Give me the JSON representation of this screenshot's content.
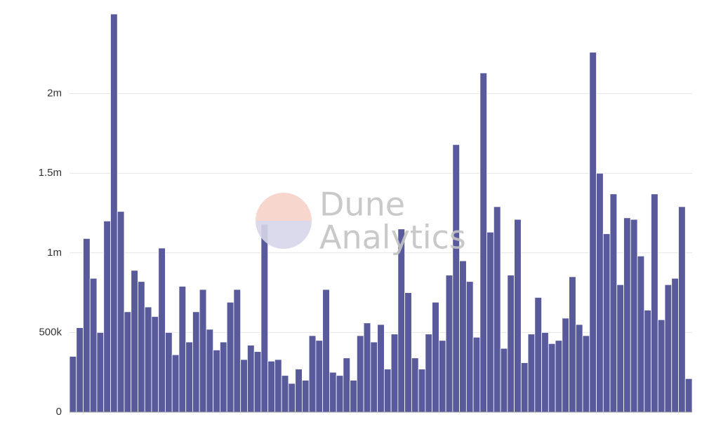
{
  "chart_data": {
    "type": "bar",
    "watermark": [
      "Dune",
      "Analytics"
    ],
    "values": [
      350000,
      530000,
      1090000,
      840000,
      500000,
      1200000,
      2500000,
      1260000,
      630000,
      890000,
      820000,
      660000,
      600000,
      1030000,
      500000,
      360000,
      790000,
      440000,
      630000,
      770000,
      520000,
      390000,
      440000,
      690000,
      770000,
      330000,
      420000,
      380000,
      1180000,
      320000,
      330000,
      230000,
      180000,
      270000,
      200000,
      480000,
      450000,
      770000,
      250000,
      230000,
      340000,
      200000,
      480000,
      560000,
      440000,
      550000,
      270000,
      490000,
      1150000,
      750000,
      340000,
      270000,
      490000,
      690000,
      450000,
      860000,
      1680000,
      950000,
      820000,
      470000,
      2130000,
      1130000,
      1290000,
      400000,
      860000,
      1210000,
      310000,
      490000,
      720000,
      500000,
      430000,
      450000,
      590000,
      850000,
      550000,
      480000,
      2260000,
      1500000,
      1120000,
      1370000,
      800000,
      1220000,
      1210000,
      980000,
      640000,
      1370000,
      580000,
      800000,
      840000,
      1290000,
      210000
    ],
    "color": "#595a9c",
    "ylim": [
      0,
      2500000
    ],
    "yticks": [
      {
        "value": 0,
        "label": "0"
      },
      {
        "value": 500000,
        "label": "500k"
      },
      {
        "value": 1000000,
        "label": "1m"
      },
      {
        "value": 1500000,
        "label": "1.5m"
      },
      {
        "value": 2000000,
        "label": "2m"
      }
    ],
    "grid": true
  }
}
